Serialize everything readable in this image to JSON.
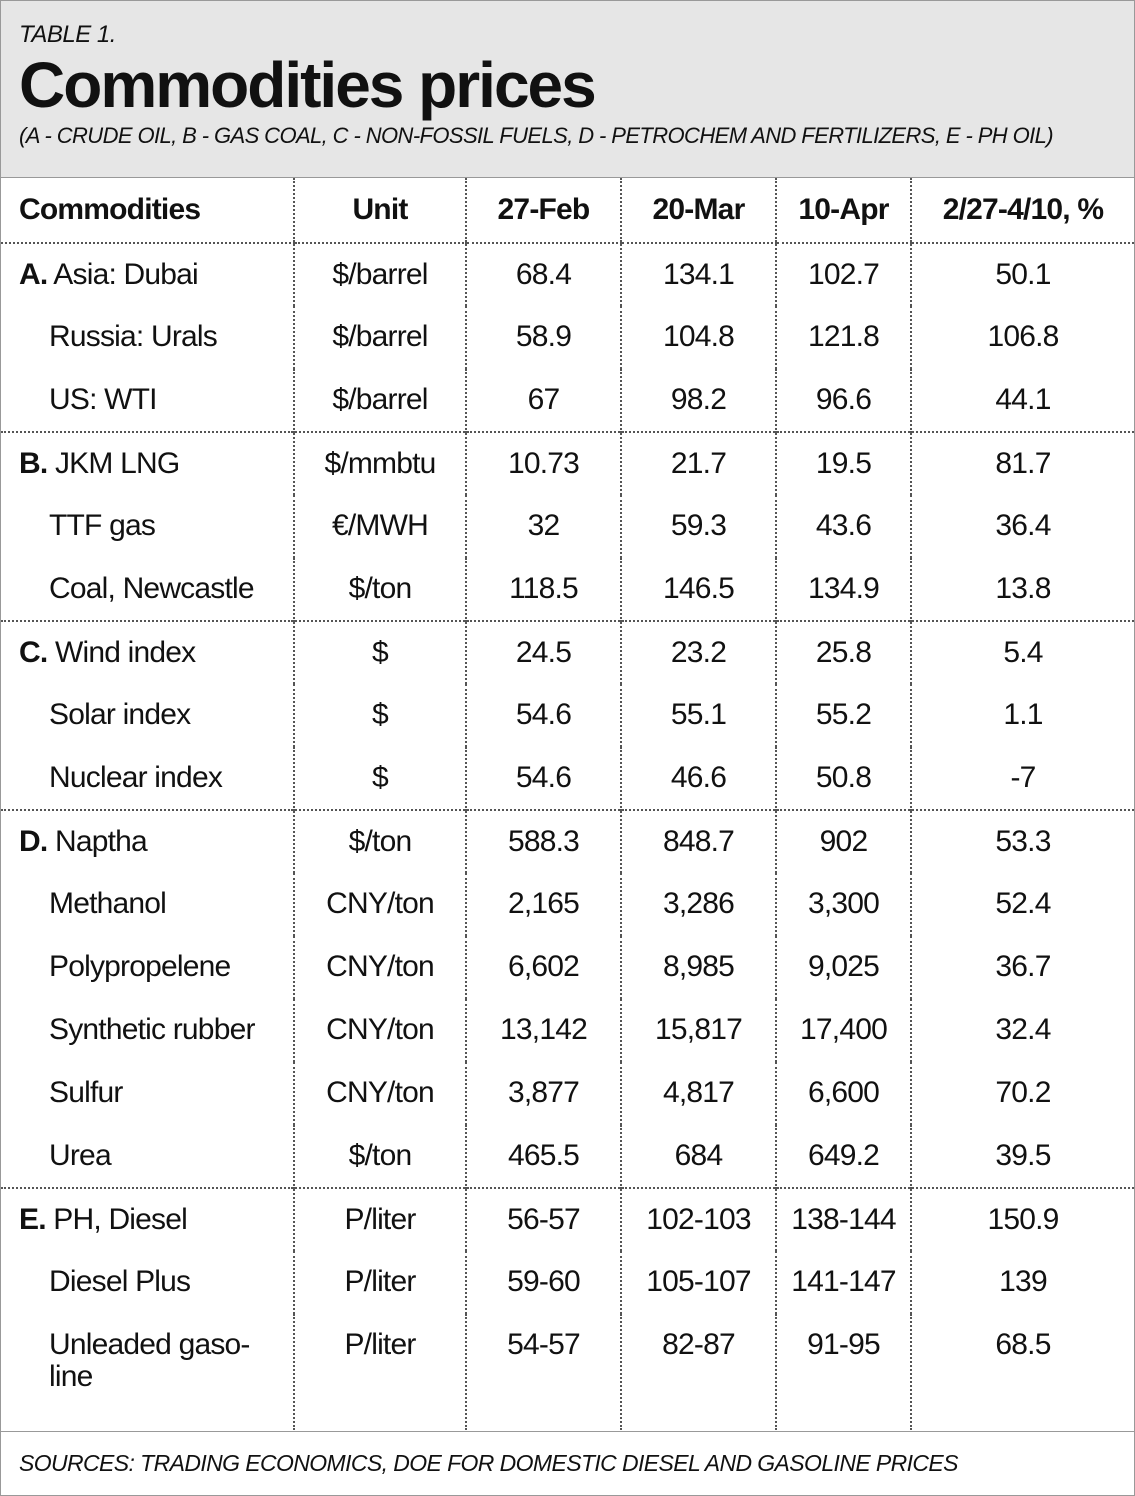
{
  "header": {
    "label": "TABLE 1.",
    "title": "Commodities prices",
    "subtitle": "(A - CRUDE OIL, B - GAS COAL, C - NON-FOSSIL FUELS, D - PETROCHEM AND FERTILIZERS, E - PH OIL)"
  },
  "table": {
    "columns": [
      "Commodities",
      "Unit",
      "27-Feb",
      "20-Mar",
      "10-Apr",
      "2/27-4/10, %"
    ],
    "groups": [
      {
        "letter": "A.",
        "rows": [
          [
            "Asia: Dubai",
            "$/barrel",
            "68.4",
            "134.1",
            "102.7",
            "50.1"
          ],
          [
            "Russia: Urals",
            "$/barrel",
            "58.9",
            "104.8",
            "121.8",
            "106.8"
          ],
          [
            "US: WTI",
            "$/barrel",
            "67",
            "98.2",
            "96.6",
            "44.1"
          ]
        ]
      },
      {
        "letter": "B.",
        "rows": [
          [
            "JKM LNG",
            "$/mmbtu",
            "10.73",
            "21.7",
            "19.5",
            "81.7"
          ],
          [
            "TTF gas",
            "€/MWH",
            "32",
            "59.3",
            "43.6",
            "36.4"
          ],
          [
            "Coal, Newcastle",
            "$/ton",
            "118.5",
            "146.5",
            "134.9",
            "13.8"
          ]
        ]
      },
      {
        "letter": "C.",
        "rows": [
          [
            "Wind index",
            "$",
            "24.5",
            "23.2",
            "25.8",
            "5.4"
          ],
          [
            "Solar index",
            "$",
            "54.6",
            "55.1",
            "55.2",
            "1.1"
          ],
          [
            "Nuclear index",
            "$",
            "54.6",
            "46.6",
            "50.8",
            "-7"
          ]
        ]
      },
      {
        "letter": "D.",
        "rows": [
          [
            "Naptha",
            "$/ton",
            "588.3",
            "848.7",
            "902",
            "53.3"
          ],
          [
            "Methanol",
            "CNY/ton",
            "2,165",
            "3,286",
            "3,300",
            "52.4"
          ],
          [
            "Polypropelene",
            "CNY/ton",
            "6,602",
            "8,985",
            "9,025",
            "36.7"
          ],
          [
            "Synthetic rubber",
            "CNY/ton",
            "13,142",
            "15,817",
            "17,400",
            "32.4"
          ],
          [
            "Sulfur",
            "CNY/ton",
            "3,877",
            "4,817",
            "6,600",
            "70.2"
          ],
          [
            "Urea",
            "$/ton",
            "465.5",
            "684",
            "649.2",
            "39.5"
          ]
        ]
      },
      {
        "letter": "E.",
        "rows": [
          [
            "PH, Diesel",
            "P/liter",
            "56-57",
            "102-103",
            "138-144",
            "150.9"
          ],
          [
            "Diesel Plus",
            "P/liter",
            "59-60",
            "105-107",
            "141-147",
            "139"
          ],
          [
            "Unleaded gaso-line",
            "P/liter",
            "54-57",
            "82-87",
            "91-95",
            "68.5"
          ]
        ]
      }
    ]
  },
  "footer": "SOURCES: TRADING ECONOMICS, DOE FOR DOMESTIC DIESEL AND GASOLINE PRICES"
}
